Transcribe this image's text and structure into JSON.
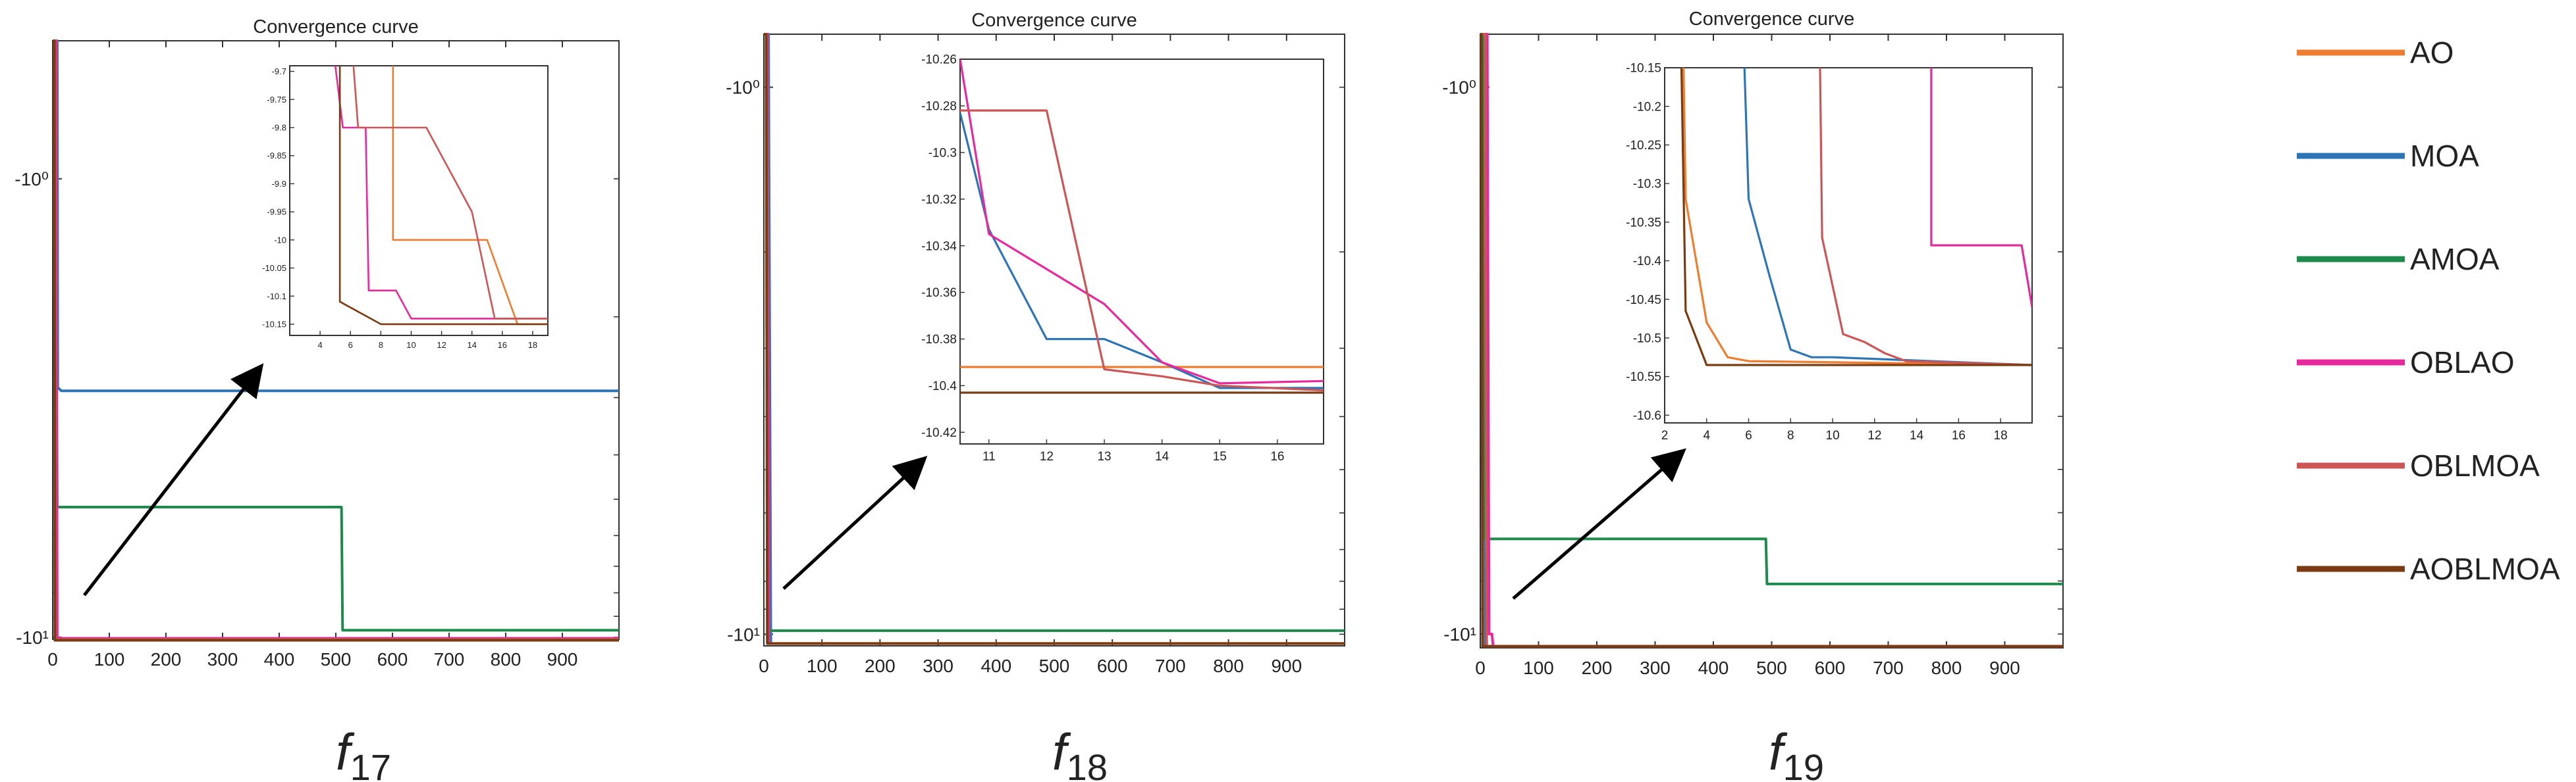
{
  "colors": {
    "AO": "#ED7D31",
    "MOA": "#2E75B6",
    "AMOA": "#1E8A4C",
    "OBLAO": "#E8299E",
    "OBLMOA": "#CC5555",
    "AOBLMOA": "#7A3B12"
  },
  "legend": [
    "AO",
    "MOA",
    "AMOA",
    "OBLAO",
    "OBLMOA",
    "AOBLMOA"
  ],
  "chart_data": [
    {
      "type": "line",
      "id": "f17",
      "title": "Convergence curve",
      "caption": {
        "base": "f",
        "sub": "17"
      },
      "xlim": [
        0,
        1000
      ],
      "xticks": [
        0,
        100,
        200,
        300,
        400,
        500,
        600,
        700,
        800,
        900
      ],
      "ylim": [
        -10.1,
        -0.5
      ],
      "ytick_labels": [
        {
          "value": -1,
          "label": "-10⁰"
        },
        {
          "value": -10,
          "label": "-10¹"
        }
      ],
      "series": [
        {
          "name": "AO",
          "points": [
            [
              0,
              -0.5
            ],
            [
              3,
              -0.5
            ],
            [
              4,
              -10.1
            ],
            [
              1000,
              -10.1
            ]
          ]
        },
        {
          "name": "MOA",
          "points": [
            [
              0,
              -0.5
            ],
            [
              8,
              -0.5
            ],
            [
              9,
              -2.85
            ],
            [
              15,
              -2.9
            ],
            [
              1000,
              -2.9
            ]
          ]
        },
        {
          "name": "AMOA",
          "points": [
            [
              0,
              -0.5
            ],
            [
              5,
              -0.5
            ],
            [
              8,
              -5.2
            ],
            [
              510,
              -5.2
            ],
            [
              512,
              -9.65
            ],
            [
              1000,
              -9.65
            ]
          ]
        },
        {
          "name": "OBLAO",
          "points": [
            [
              0,
              -0.5
            ],
            [
              6,
              -0.5
            ],
            [
              8,
              -10.05
            ],
            [
              1000,
              -10.05
            ]
          ]
        },
        {
          "name": "OBLMOA",
          "points": [
            [
              0,
              -0.5
            ],
            [
              4,
              -0.5
            ],
            [
              5,
              -10.1
            ],
            [
              1000,
              -10.1
            ]
          ]
        },
        {
          "name": "AOBLMOA",
          "points": [
            [
              0,
              -0.5
            ],
            [
              3,
              -0.5
            ],
            [
              4,
              -10.15
            ],
            [
              1000,
              -10.15
            ]
          ]
        }
      ],
      "inset": {
        "xlim": [
          2,
          19
        ],
        "xticks": [
          4,
          6,
          8,
          10,
          12,
          14,
          16,
          18
        ],
        "ylim": [
          -10.17,
          -9.69
        ],
        "yticks": [
          -9.7,
          -9.75,
          -9.8,
          -9.85,
          -9.9,
          -9.95,
          -10,
          -10.05,
          -10.1,
          -10.15
        ],
        "series": [
          {
            "name": "AO",
            "points": [
              [
                8.8,
                -9.69
              ],
              [
                8.8,
                -10.0
              ],
              [
                15,
                -10.0
              ],
              [
                17,
                -10.15
              ],
              [
                19,
                -10.15
              ]
            ]
          },
          {
            "name": "OBLAO",
            "points": [
              [
                5,
                -9.69
              ],
              [
                5.5,
                -9.8
              ],
              [
                7,
                -9.8
              ],
              [
                7.2,
                -10.09
              ],
              [
                9,
                -10.09
              ],
              [
                10,
                -10.14
              ],
              [
                19,
                -10.14
              ]
            ]
          },
          {
            "name": "OBLMOA",
            "points": [
              [
                6.2,
                -9.69
              ],
              [
                6.5,
                -9.8
              ],
              [
                11,
                -9.8
              ],
              [
                14,
                -9.95
              ],
              [
                15.5,
                -10.14
              ],
              [
                19,
                -10.14
              ]
            ]
          },
          {
            "name": "AOBLMOA",
            "points": [
              [
                5.3,
                -9.69
              ],
              [
                5.3,
                -10.11
              ],
              [
                8,
                -10.15
              ],
              [
                19,
                -10.15
              ]
            ]
          }
        ]
      }
    },
    {
      "type": "line",
      "id": "f18",
      "title": "Convergence curve",
      "caption": {
        "base": "f",
        "sub": "18"
      },
      "xlim": [
        0,
        1000
      ],
      "xticks": [
        0,
        100,
        200,
        300,
        400,
        500,
        600,
        700,
        800,
        900
      ],
      "ylim": [
        -10.5,
        -0.8
      ],
      "ytick_labels": [
        {
          "value": -1,
          "label": "-10⁰"
        },
        {
          "value": -10,
          "label": "-10¹"
        }
      ],
      "series": [
        {
          "name": "AO",
          "points": [
            [
              0,
              -0.8
            ],
            [
              4,
              -0.8
            ],
            [
              6,
              -10.39
            ],
            [
              1000,
              -10.39
            ]
          ]
        },
        {
          "name": "MOA",
          "points": [
            [
              0,
              -0.8
            ],
            [
              8,
              -0.8
            ],
            [
              12,
              -10.4
            ],
            [
              1000,
              -10.4
            ]
          ]
        },
        {
          "name": "AMOA",
          "points": [
            [
              0,
              -0.8
            ],
            [
              5,
              -0.8
            ],
            [
              7,
              -9.85
            ],
            [
              1000,
              -9.85
            ]
          ]
        },
        {
          "name": "OBLAO",
          "points": [
            [
              0,
              -0.8
            ],
            [
              6,
              -0.8
            ],
            [
              9,
              -10.4
            ],
            [
              1000,
              -10.4
            ]
          ]
        },
        {
          "name": "OBLMOA",
          "points": [
            [
              0,
              -0.8
            ],
            [
              5,
              -0.8
            ],
            [
              7,
              -10.4
            ],
            [
              1000,
              -10.4
            ]
          ]
        },
        {
          "name": "AOBLMOA",
          "points": [
            [
              0,
              -0.8
            ],
            [
              4,
              -0.8
            ],
            [
              6,
              -10.4
            ],
            [
              1000,
              -10.4
            ]
          ]
        }
      ],
      "inset": {
        "xlim": [
          10.5,
          16.8
        ],
        "xticks": [
          11,
          12,
          13,
          14,
          15,
          16
        ],
        "ylim": [
          -10.425,
          -10.26
        ],
        "yticks": [
          -10.26,
          -10.28,
          -10.3,
          -10.32,
          -10.34,
          -10.36,
          -10.38,
          -10.4,
          -10.42
        ],
        "series": [
          {
            "name": "AO",
            "points": [
              [
                10.5,
                -10.392
              ],
              [
                16.8,
                -10.392
              ]
            ]
          },
          {
            "name": "MOA",
            "points": [
              [
                10.5,
                -10.283
              ],
              [
                11,
                -10.333
              ],
              [
                12,
                -10.38
              ],
              [
                13,
                -10.38
              ],
              [
                14,
                -10.39
              ],
              [
                15,
                -10.401
              ],
              [
                16.8,
                -10.401
              ]
            ]
          },
          {
            "name": "OBLAO",
            "points": [
              [
                10.5,
                -10.26
              ],
              [
                11,
                -10.335
              ],
              [
                12,
                -10.35
              ],
              [
                13,
                -10.365
              ],
              [
                14,
                -10.39
              ],
              [
                15,
                -10.399
              ],
              [
                16.8,
                -10.398
              ]
            ]
          },
          {
            "name": "OBLMOA",
            "points": [
              [
                10.5,
                -10.282
              ],
              [
                12,
                -10.282
              ],
              [
                13,
                -10.393
              ],
              [
                14,
                -10.396
              ],
              [
                15,
                -10.4
              ],
              [
                16.8,
                -10.402
              ]
            ]
          },
          {
            "name": "AOBLMOA",
            "points": [
              [
                10.5,
                -10.403
              ],
              [
                16.8,
                -10.403
              ]
            ]
          }
        ]
      }
    },
    {
      "type": "line",
      "id": "f19",
      "title": "Convergence curve",
      "caption": {
        "base": "f",
        "sub": "19"
      },
      "xlim": [
        0,
        1000
      ],
      "xticks": [
        0,
        100,
        200,
        300,
        400,
        500,
        600,
        700,
        800,
        900
      ],
      "ylim": [
        -10.6,
        -0.8
      ],
      "ytick_labels": [
        {
          "value": -1,
          "label": "-10⁰"
        },
        {
          "value": -10,
          "label": "-10¹"
        }
      ],
      "series": [
        {
          "name": "AO",
          "points": [
            [
              0,
              -0.8
            ],
            [
              3,
              -0.8
            ],
            [
              6,
              -10.53
            ],
            [
              1000,
              -10.53
            ]
          ]
        },
        {
          "name": "MOA",
          "points": [
            [
              0,
              -0.8
            ],
            [
              6,
              -0.8
            ],
            [
              9,
              -10.53
            ],
            [
              1000,
              -10.53
            ]
          ]
        },
        {
          "name": "AMOA",
          "points": [
            [
              0,
              -0.8
            ],
            [
              4,
              -0.8
            ],
            [
              6,
              -6.7
            ],
            [
              490,
              -6.7
            ],
            [
              492,
              -8.1
            ],
            [
              1000,
              -8.1
            ]
          ]
        },
        {
          "name": "OBLAO",
          "points": [
            [
              0,
              -0.8
            ],
            [
              12,
              -0.8
            ],
            [
              15,
              -10.0
            ],
            [
              20,
              -10.0
            ],
            [
              22,
              -10.53
            ],
            [
              1000,
              -10.53
            ]
          ]
        },
        {
          "name": "OBLMOA",
          "points": [
            [
              0,
              -0.8
            ],
            [
              8,
              -0.8
            ],
            [
              11,
              -10.53
            ],
            [
              1000,
              -10.53
            ]
          ]
        },
        {
          "name": "AOBLMOA",
          "points": [
            [
              0,
              -0.8
            ],
            [
              2,
              -0.8
            ],
            [
              4,
              -10.535
            ],
            [
              1000,
              -10.535
            ]
          ]
        }
      ],
      "inset": {
        "xlim": [
          2,
          19.5
        ],
        "xticks": [
          2,
          4,
          6,
          8,
          10,
          12,
          14,
          16,
          18
        ],
        "ylim": [
          -10.61,
          -10.15
        ],
        "yticks": [
          -10.15,
          -10.2,
          -10.25,
          -10.3,
          -10.35,
          -10.4,
          -10.45,
          -10.5,
          -10.55,
          -10.6
        ],
        "series": [
          {
            "name": "AO",
            "points": [
              [
                2.9,
                -10.15
              ],
              [
                3,
                -10.32
              ],
              [
                4,
                -10.48
              ],
              [
                5,
                -10.525
              ],
              [
                6,
                -10.53
              ],
              [
                19.5,
                -10.535
              ]
            ]
          },
          {
            "name": "MOA",
            "points": [
              [
                5.8,
                -10.15
              ],
              [
                6,
                -10.32
              ],
              [
                7,
                -10.42
              ],
              [
                8,
                -10.515
              ],
              [
                9,
                -10.525
              ],
              [
                10,
                -10.525
              ],
              [
                19.5,
                -10.535
              ]
            ]
          },
          {
            "name": "OBLAO",
            "points": [
              [
                14.7,
                -10.15
              ],
              [
                14.7,
                -10.38
              ],
              [
                19,
                -10.38
              ],
              [
                19.5,
                -10.46
              ]
            ]
          },
          {
            "name": "OBLMOA",
            "points": [
              [
                9.4,
                -10.15
              ],
              [
                9.5,
                -10.37
              ],
              [
                10.5,
                -10.495
              ],
              [
                11.5,
                -10.505
              ],
              [
                12.5,
                -10.52
              ],
              [
                13.5,
                -10.53
              ],
              [
                19.5,
                -10.535
              ]
            ]
          },
          {
            "name": "AOBLMOA",
            "points": [
              [
                2.8,
                -10.15
              ],
              [
                3,
                -10.465
              ],
              [
                4,
                -10.535
              ],
              [
                19.5,
                -10.535
              ]
            ]
          }
        ]
      }
    }
  ]
}
